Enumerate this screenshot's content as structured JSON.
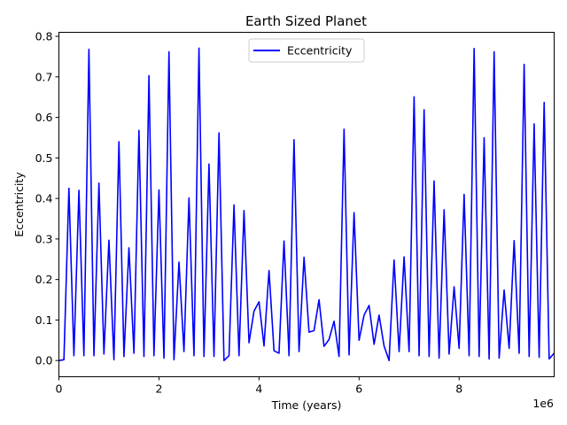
{
  "chart_data": {
    "type": "line",
    "title": "Earth Sized Planet",
    "xlabel": "Time (years)",
    "ylabel": "Eccentricity",
    "x_offset_label": "1e6",
    "xlim": [
      0,
      9900000
    ],
    "ylim": [
      -0.04,
      0.81
    ],
    "x_ticks": [
      0,
      2000000,
      4000000,
      6000000,
      8000000
    ],
    "x_tick_labels": [
      "0",
      "2",
      "4",
      "6",
      "8"
    ],
    "y_ticks": [
      0.0,
      0.1,
      0.2,
      0.3,
      0.4,
      0.5,
      0.6,
      0.7,
      0.8
    ],
    "y_tick_labels": [
      "0.0",
      "0.1",
      "0.2",
      "0.3",
      "0.4",
      "0.5",
      "0.6",
      "0.7",
      "0.8"
    ],
    "grid": false,
    "legend_position": "top-center",
    "series": [
      {
        "name": "Eccentricity",
        "color": "#0000ff",
        "x": [
          0,
          100000,
          200000,
          300000,
          400000,
          500000,
          600000,
          700000,
          800000,
          900000,
          1000000,
          1100000,
          1200000,
          1300000,
          1400000,
          1500000,
          1600000,
          1700000,
          1800000,
          1900000,
          2000000,
          2100000,
          2200000,
          2300000,
          2400000,
          2500000,
          2600000,
          2700000,
          2800000,
          2900000,
          3000000,
          3100000,
          3200000,
          3300000,
          3400000,
          3500000,
          3600000,
          3700000,
          3800000,
          3900000,
          4000000,
          4100000,
          4200000,
          4300000,
          4400000,
          4500000,
          4600000,
          4700000,
          4800000,
          4900000,
          5000000,
          5100000,
          5200000,
          5300000,
          5400000,
          5500000,
          5600000,
          5700000,
          5800000,
          5900000,
          6000000,
          6100000,
          6200000,
          6300000,
          6400000,
          6500000,
          6600000,
          6700000,
          6800000,
          6900000,
          7000000,
          7100000,
          7200000,
          7300000,
          7400000,
          7500000,
          7600000,
          7700000,
          7800000,
          7900000,
          8000000,
          8100000,
          8200000,
          8300000,
          8400000,
          8500000,
          8600000,
          8700000,
          8800000,
          8900000,
          9000000,
          9100000,
          9200000,
          9300000,
          9400000,
          9500000,
          9600000,
          9700000,
          9800000,
          9900000
        ],
        "y": [
          0.0,
          0.002,
          0.425,
          0.012,
          0.42,
          0.012,
          0.768,
          0.012,
          0.438,
          0.016,
          0.297,
          0.002,
          0.54,
          0.01,
          0.278,
          0.018,
          0.568,
          0.01,
          0.703,
          0.012,
          0.421,
          0.006,
          0.762,
          0.002,
          0.243,
          0.022,
          0.401,
          0.012,
          0.771,
          0.01,
          0.485,
          0.01,
          0.562,
          0.0,
          0.012,
          0.384,
          0.012,
          0.37,
          0.044,
          0.122,
          0.145,
          0.036,
          0.222,
          0.024,
          0.018,
          0.295,
          0.012,
          0.545,
          0.022,
          0.255,
          0.07,
          0.074,
          0.15,
          0.035,
          0.052,
          0.097,
          0.01,
          0.571,
          0.014,
          0.365,
          0.05,
          0.112,
          0.136,
          0.04,
          0.112,
          0.036,
          0.0,
          0.248,
          0.022,
          0.256,
          0.022,
          0.651,
          0.012,
          0.619,
          0.01,
          0.443,
          0.006,
          0.372,
          0.016,
          0.182,
          0.03,
          0.41,
          0.012,
          0.77,
          0.01,
          0.55,
          0.004,
          0.762,
          0.006,
          0.174,
          0.03,
          0.296,
          0.018,
          0.731,
          0.01,
          0.584,
          0.008,
          0.637,
          0.004,
          0.018
        ]
      }
    ]
  }
}
